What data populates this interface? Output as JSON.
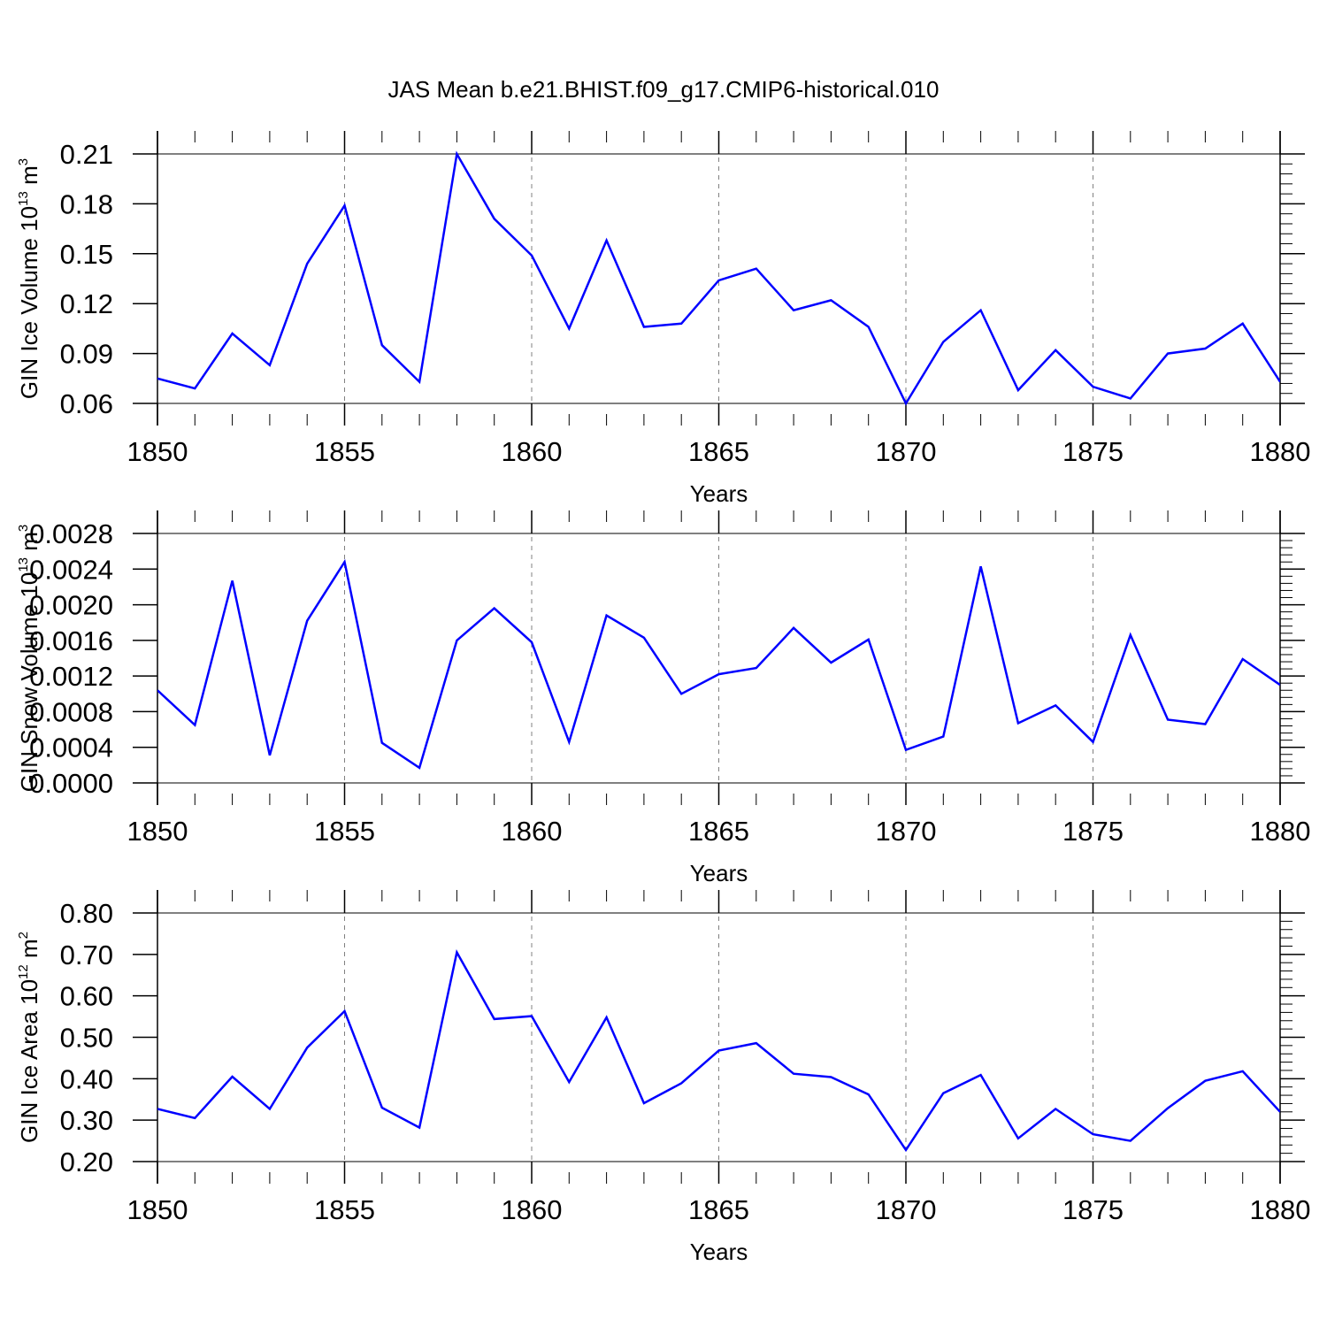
{
  "title": "JAS Mean b.e21.BHIST.f09_g17.CMIP6-historical.010",
  "colors": {
    "series": "#0000ff",
    "axes": "#000000",
    "grid": "#808080"
  },
  "chart_data": [
    {
      "type": "line",
      "xlabel": "Years",
      "ylabel": {
        "base": "GIN Ice Volume 10",
        "exp": "13",
        "unit": " m",
        "unit_exp": "3"
      },
      "xlim": [
        1850,
        1880
      ],
      "ylim": [
        0.06,
        0.21
      ],
      "xticks": [
        "1850",
        "1855",
        "1860",
        "1865",
        "1870",
        "1875",
        "1880"
      ],
      "yticks": [
        "0.06",
        "0.09",
        "0.12",
        "0.15",
        "0.18",
        "0.21"
      ],
      "x": [
        1850,
        1851,
        1852,
        1853,
        1854,
        1855,
        1856,
        1857,
        1858,
        1859,
        1860,
        1861,
        1862,
        1863,
        1864,
        1865,
        1866,
        1867,
        1868,
        1869,
        1870,
        1871,
        1872,
        1873,
        1874,
        1875,
        1876,
        1877,
        1878,
        1879,
        1880
      ],
      "values": [
        0.075,
        0.069,
        0.102,
        0.083,
        0.144,
        0.179,
        0.095,
        0.073,
        0.21,
        0.171,
        0.149,
        0.105,
        0.158,
        0.106,
        0.108,
        0.134,
        0.141,
        0.116,
        0.122,
        0.106,
        0.06,
        0.097,
        0.116,
        0.068,
        0.092,
        0.07,
        0.063,
        0.09,
        0.093,
        0.108,
        0.073
      ]
    },
    {
      "type": "line",
      "xlabel": "Years",
      "ylabel": {
        "base": "GIN Snow Volume 10",
        "exp": "13",
        "unit": " m",
        "unit_exp": "3"
      },
      "xlim": [
        1850,
        1880
      ],
      "ylim": [
        0.0,
        0.0028
      ],
      "xticks": [
        "1850",
        "1855",
        "1860",
        "1865",
        "1870",
        "1875",
        "1880"
      ],
      "yticks": [
        "0.0000",
        "0.0004",
        "0.0008",
        "0.0012",
        "0.0016",
        "0.0020",
        "0.0024",
        "0.0028"
      ],
      "x": [
        1850,
        1851,
        1852,
        1853,
        1854,
        1855,
        1856,
        1857,
        1858,
        1859,
        1860,
        1861,
        1862,
        1863,
        1864,
        1865,
        1866,
        1867,
        1868,
        1869,
        1870,
        1871,
        1872,
        1873,
        1874,
        1875,
        1876,
        1877,
        1878,
        1879,
        1880
      ],
      "values": [
        0.00104,
        0.00065,
        0.00227,
        0.00031,
        0.00182,
        0.00248,
        0.00045,
        0.00017,
        0.0016,
        0.00196,
        0.00158,
        0.00046,
        0.00188,
        0.00163,
        0.001,
        0.00122,
        0.00129,
        0.00174,
        0.00135,
        0.00161,
        0.00037,
        0.00052,
        0.00243,
        0.00067,
        0.00087,
        0.00046,
        0.00166,
        0.00071,
        0.00066,
        0.00139,
        0.0011
      ]
    },
    {
      "type": "line",
      "xlabel": "Years",
      "ylabel": {
        "base": "GIN Ice Area 10",
        "exp": "12",
        "unit": " m",
        "unit_exp": "2"
      },
      "xlim": [
        1850,
        1880
      ],
      "ylim": [
        0.2,
        0.8
      ],
      "xticks": [
        "1850",
        "1855",
        "1860",
        "1865",
        "1870",
        "1875",
        "1880"
      ],
      "yticks": [
        "0.20",
        "0.30",
        "0.40",
        "0.50",
        "0.60",
        "0.70",
        "0.80"
      ],
      "x": [
        1850,
        1851,
        1852,
        1853,
        1854,
        1855,
        1856,
        1857,
        1858,
        1859,
        1860,
        1861,
        1862,
        1863,
        1864,
        1865,
        1866,
        1867,
        1868,
        1869,
        1870,
        1871,
        1872,
        1873,
        1874,
        1875,
        1876,
        1877,
        1878,
        1879,
        1880
      ],
      "values": [
        0.327,
        0.305,
        0.405,
        0.327,
        0.475,
        0.563,
        0.33,
        0.282,
        0.705,
        0.544,
        0.551,
        0.392,
        0.548,
        0.341,
        0.389,
        0.468,
        0.486,
        0.412,
        0.404,
        0.362,
        0.228,
        0.365,
        0.409,
        0.256,
        0.327,
        0.266,
        0.25,
        0.329,
        0.395,
        0.418,
        0.32
      ]
    }
  ]
}
